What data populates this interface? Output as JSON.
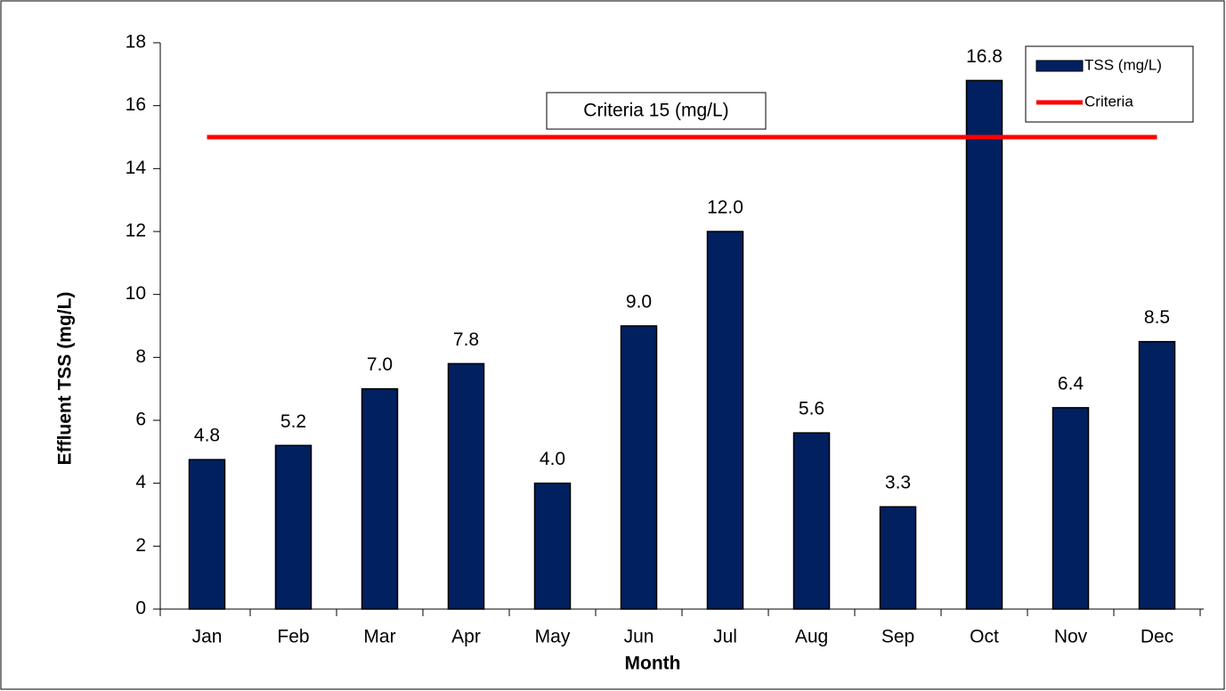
{
  "chart_data": {
    "type": "bar",
    "x_label": "Month",
    "y_label": "Effluent TSS (mg/L)",
    "categories": [
      "Jan",
      "Feb",
      "Mar",
      "Apr",
      "May",
      "Jun",
      "Jul",
      "Aug",
      "Sep",
      "Oct",
      "Nov",
      "Dec"
    ],
    "series": [
      {
        "name": "TSS (mg/L)",
        "type": "bar",
        "color": "#002060",
        "values": [
          4.75,
          5.2,
          7.0,
          7.8,
          4.0,
          9.0,
          12.0,
          5.6,
          3.25,
          16.8,
          6.4,
          8.5
        ],
        "value_labels": [
          "4.8",
          "5.2",
          "7.0",
          "7.8",
          "4.0",
          "9.0",
          "12.0",
          "5.6",
          "3.3",
          "16.8",
          "6.4",
          "8.5"
        ]
      },
      {
        "name": "Criteria",
        "type": "line",
        "color": "#ff0000",
        "values": [
          15,
          15,
          15,
          15,
          15,
          15,
          15,
          15,
          15,
          15,
          15,
          15
        ]
      }
    ],
    "annotations": [
      {
        "text": "Criteria 15 (mg/L)"
      }
    ],
    "ylim": [
      0,
      18
    ],
    "yticks": [
      0,
      2,
      4,
      6,
      8,
      10,
      12,
      14,
      16,
      18
    ],
    "grid": false,
    "legend": "top-right"
  }
}
